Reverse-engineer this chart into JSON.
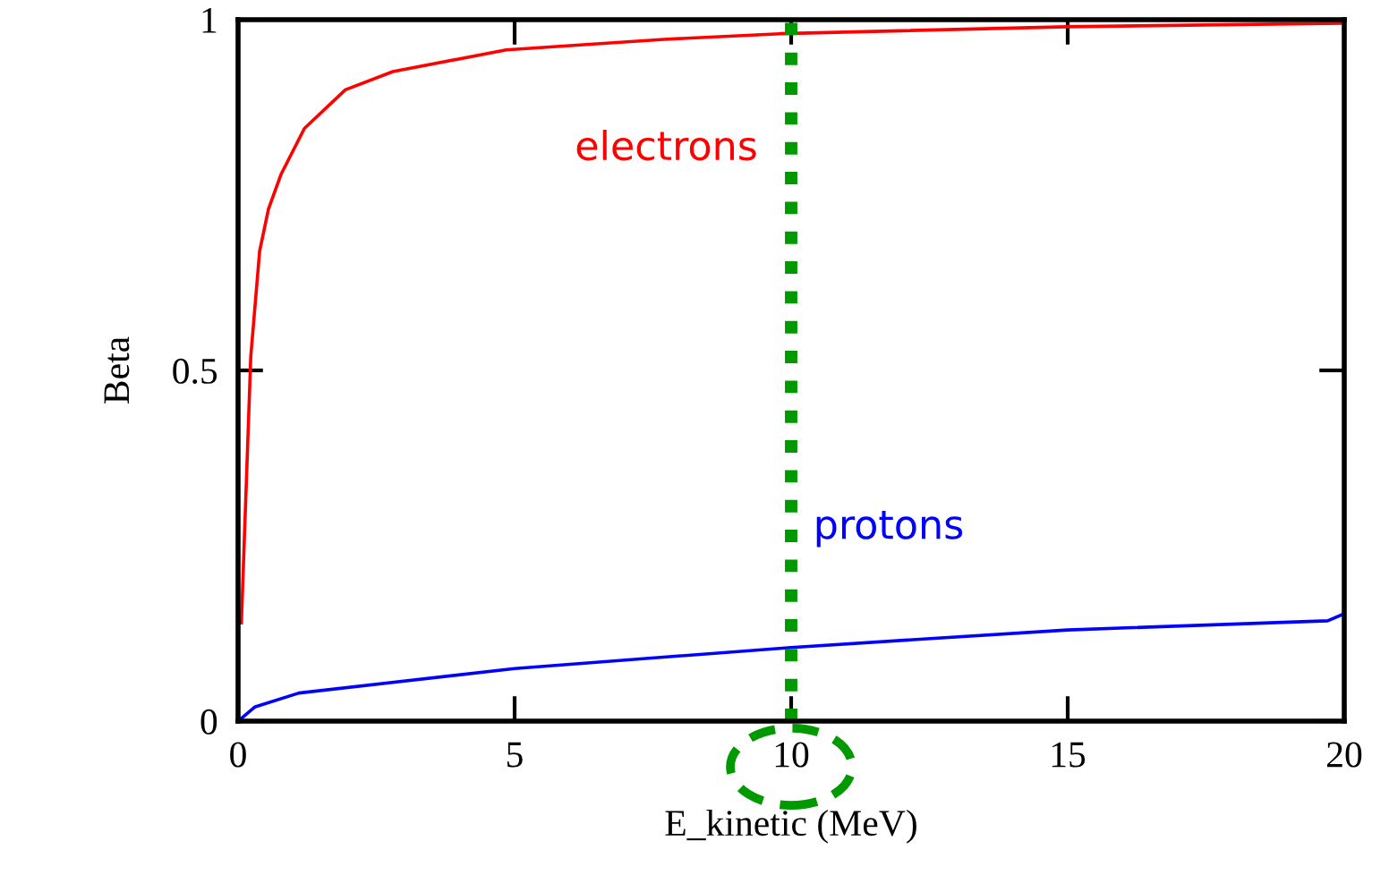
{
  "chart_data": {
    "type": "line",
    "xlabel": "E_kinetic (MeV)",
    "ylabel": "Beta",
    "xlim": [
      0,
      20
    ],
    "xticks": [
      0,
      5,
      10,
      15,
      20
    ],
    "ylim": [
      0,
      1
    ],
    "yticks": [
      0,
      0.5,
      1
    ],
    "grid": false,
    "legend": false,
    "series": [
      {
        "name": "electrons",
        "color": "#ff0000",
        "x": [
          0.06,
          0.23,
          0.39,
          0.55,
          0.78,
          1.2,
          1.94,
          2.8,
          4.85,
          7.7,
          9.8,
          15,
          20
        ],
        "values": [
          0.14,
          0.52,
          0.67,
          0.73,
          0.78,
          0.845,
          0.9,
          0.926,
          0.957,
          0.972,
          0.98,
          0.99,
          0.995
        ]
      },
      {
        "name": "protons",
        "color": "#0000ff",
        "x": [
          0,
          0.3,
          1.1,
          5,
          10,
          15,
          19.7,
          20
        ],
        "values": [
          0,
          0.02,
          0.04,
          0.075,
          0.105,
          0.13,
          0.143,
          0.153
        ]
      }
    ],
    "ref_lines": [
      {
        "axis": "x",
        "value": 10,
        "label": null,
        "color": "#009900",
        "line_style": "dotted"
      }
    ]
  }
}
